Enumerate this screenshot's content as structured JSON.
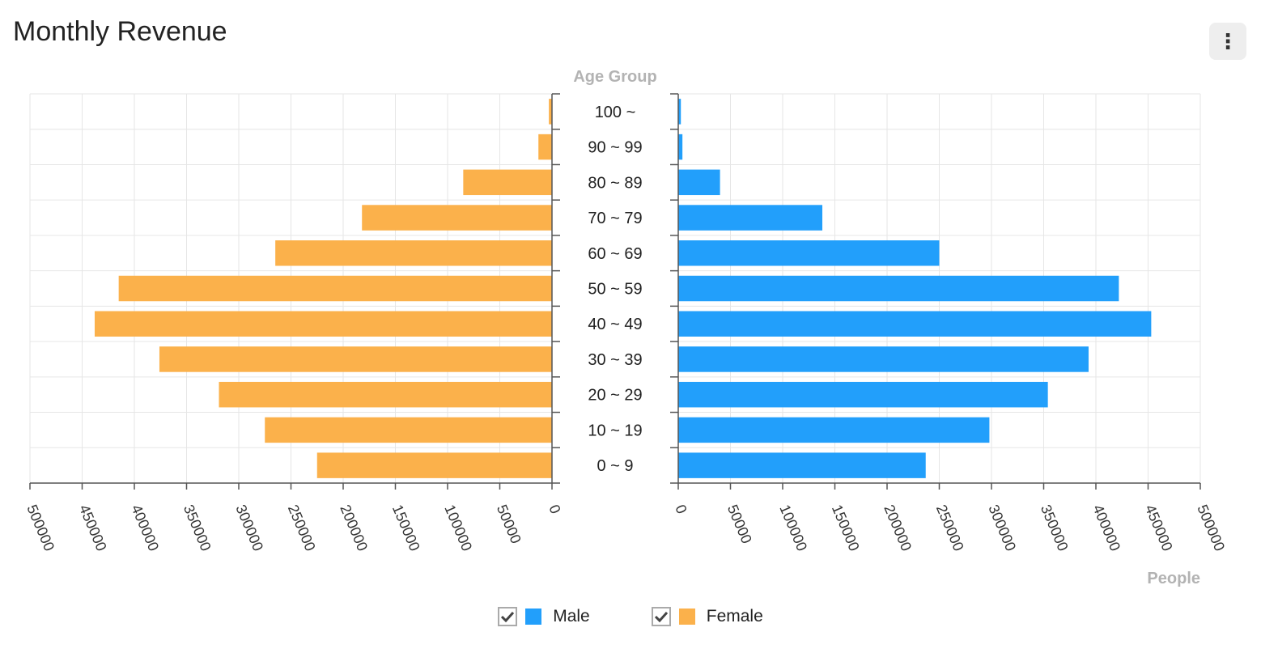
{
  "title": "Monthly Revenue",
  "menu_icon": "more-vertical-icon",
  "chart_data": {
    "type": "bar",
    "orientation": "horizontal-mirrored",
    "title": "Monthly Revenue",
    "categories": [
      "0 ~ 9",
      "10 ~ 19",
      "20 ~ 29",
      "30 ~ 39",
      "40 ~ 49",
      "50 ~ 59",
      "60 ~ 69",
      "70 ~ 79",
      "80 ~ 89",
      "90 ~ 99",
      "100 ~"
    ],
    "series": [
      {
        "name": "Male",
        "color": "#229ffb",
        "side": "right",
        "values": [
          237000,
          298000,
          354000,
          393000,
          453000,
          422000,
          250000,
          138000,
          40000,
          4000,
          2500
        ]
      },
      {
        "name": "Female",
        "color": "#fbb14b",
        "side": "left",
        "values": [
          225000,
          275000,
          319000,
          376000,
          438000,
          415000,
          265000,
          182000,
          85000,
          13000,
          3000
        ]
      }
    ],
    "category_axis_title": "Age Group",
    "value_axis_title": "People",
    "xlim": [
      0,
      500000
    ],
    "ticks": [
      0,
      50000,
      100000,
      150000,
      200000,
      250000,
      300000,
      350000,
      400000,
      450000,
      500000
    ],
    "grid": true,
    "legend_position": "bottom-center"
  },
  "legend": [
    {
      "label": "Male",
      "checked": true,
      "color": "#229ffb"
    },
    {
      "label": "Female",
      "checked": true,
      "color": "#fbb14b"
    }
  ]
}
